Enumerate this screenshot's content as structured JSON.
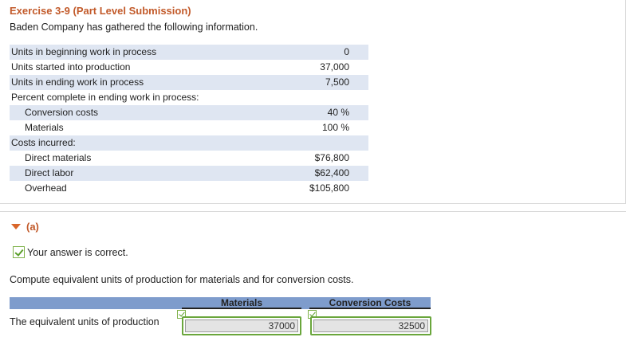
{
  "exercise": {
    "title": "Exercise 3-9 (Part Level Submission)",
    "intro": "Baden Company has gathered the following information."
  },
  "info_rows": [
    {
      "label": "Units in beginning work in process",
      "value": "0"
    },
    {
      "label": "Units started into production",
      "value": "37,000"
    },
    {
      "label": "Units in ending work in process",
      "value": "7,500"
    },
    {
      "label": "Percent complete in ending work in process:",
      "value": ""
    },
    {
      "label": "Conversion costs",
      "value": "40 %"
    },
    {
      "label": "Materials",
      "value": "100 %"
    },
    {
      "label": "Costs incurred:",
      "value": ""
    },
    {
      "label": "Direct materials",
      "value": "$76,800"
    },
    {
      "label": "Direct labor",
      "value": "$62,400"
    },
    {
      "label": "Overhead",
      "value": "$105,800"
    }
  ],
  "part": {
    "label": "(a)",
    "status": "Your answer is correct.",
    "prompt": "Compute equivalent units of production for materials and for conversion costs."
  },
  "answer_table": {
    "headers": [
      "Materials",
      "Conversion Costs"
    ],
    "row_label": "The equivalent units of production",
    "values": [
      "37000",
      "32500"
    ]
  },
  "colors": {
    "accent": "#c25a2a",
    "row_shade": "#dfe6f2",
    "header_bar": "#7e9ccc",
    "correct_green": "#6aa63c"
  }
}
